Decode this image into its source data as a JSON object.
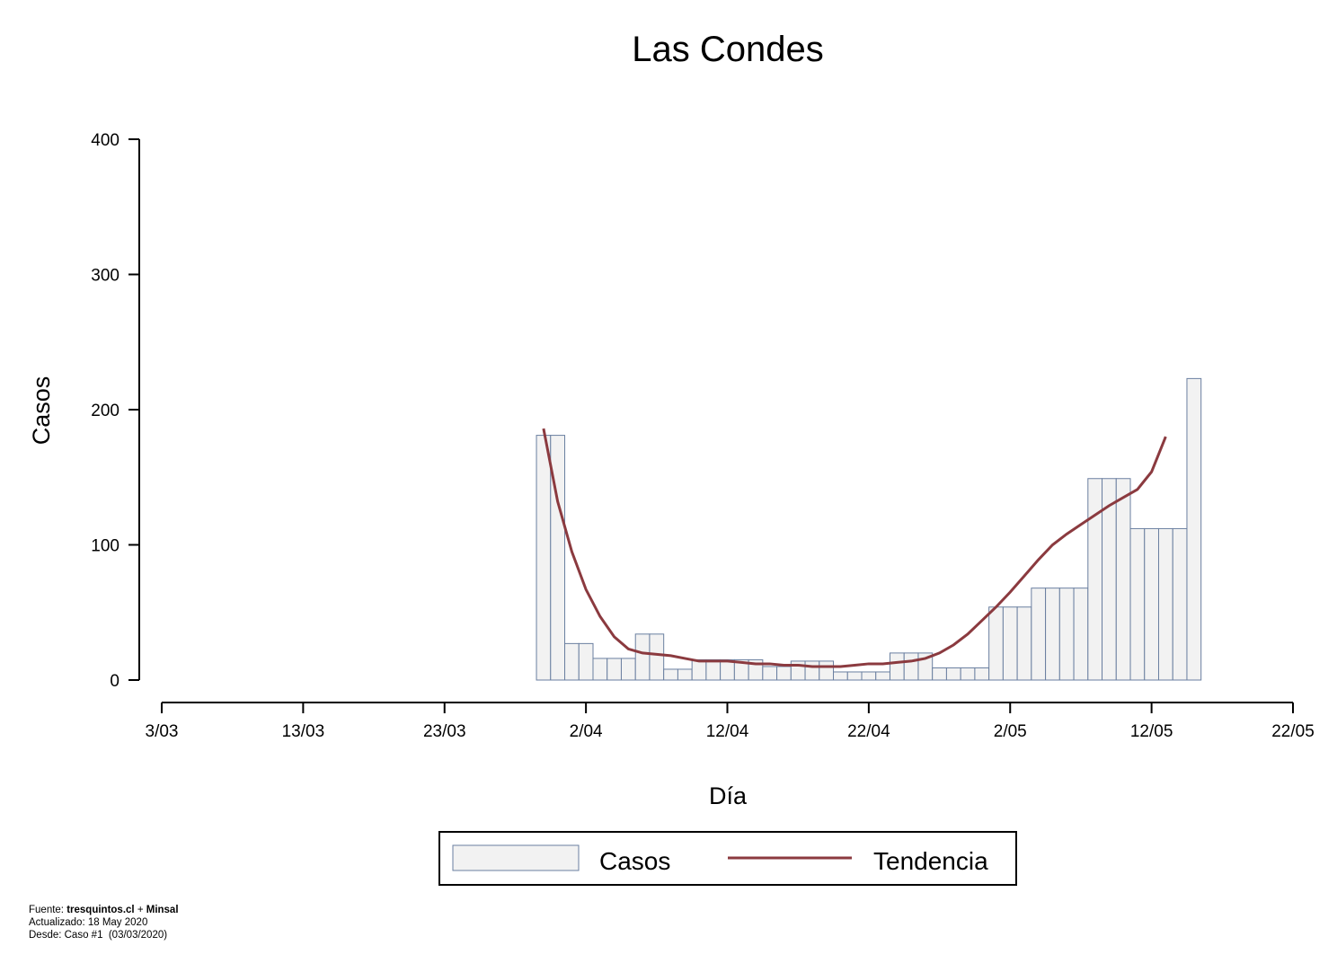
{
  "chart_data": {
    "type": "bar",
    "title": "Las Condes",
    "xlabel": "Día",
    "ylabel": "Casos",
    "ylim": [
      0,
      400
    ],
    "yticks": [
      0,
      100,
      200,
      300,
      400
    ],
    "xticks": [
      "3/03",
      "13/03",
      "23/03",
      "2/04",
      "12/04",
      "22/04",
      "2/05",
      "12/05",
      "22/05"
    ],
    "x_range_days": [
      0,
      80
    ],
    "series": [
      {
        "name": "Casos",
        "type": "bar",
        "color": "#f2f2f2",
        "edge_color": "#6a7fa0",
        "start_day": 27,
        "values": [
          181,
          181,
          27,
          27,
          16,
          16,
          16,
          34,
          34,
          8,
          8,
          15,
          15,
          15,
          15,
          15,
          10,
          10,
          14,
          14,
          14,
          6,
          6,
          6,
          6,
          20,
          20,
          20,
          9,
          9,
          9,
          9,
          54,
          54,
          54,
          68,
          68,
          68,
          68,
          149,
          149,
          149,
          112,
          112,
          112,
          112,
          223
        ]
      },
      {
        "name": "Tendencia",
        "type": "line",
        "color": "#8b3a3f",
        "start_day": 27,
        "values": [
          186,
          132,
          95,
          67,
          47,
          32,
          23,
          20,
          19,
          18,
          16,
          14,
          14,
          14,
          13,
          12,
          12,
          11,
          11,
          10,
          10,
          10,
          11,
          12,
          12,
          13,
          14,
          16,
          20,
          26,
          34,
          44,
          54,
          65,
          77,
          89,
          100,
          108,
          115,
          122,
          129,
          135,
          141,
          154,
          180
        ]
      }
    ],
    "legend": {
      "position": "bottom",
      "entries": [
        "Casos",
        "Tendencia"
      ]
    }
  },
  "footer": {
    "source_label": "Fuente:",
    "source_a": "tresquintos.cl",
    "source_sep": "+",
    "source_b": "Minsal",
    "updated": "Actualizado: 18 May 2020",
    "since": "Desde: Caso #1  (03/03/2020)"
  }
}
